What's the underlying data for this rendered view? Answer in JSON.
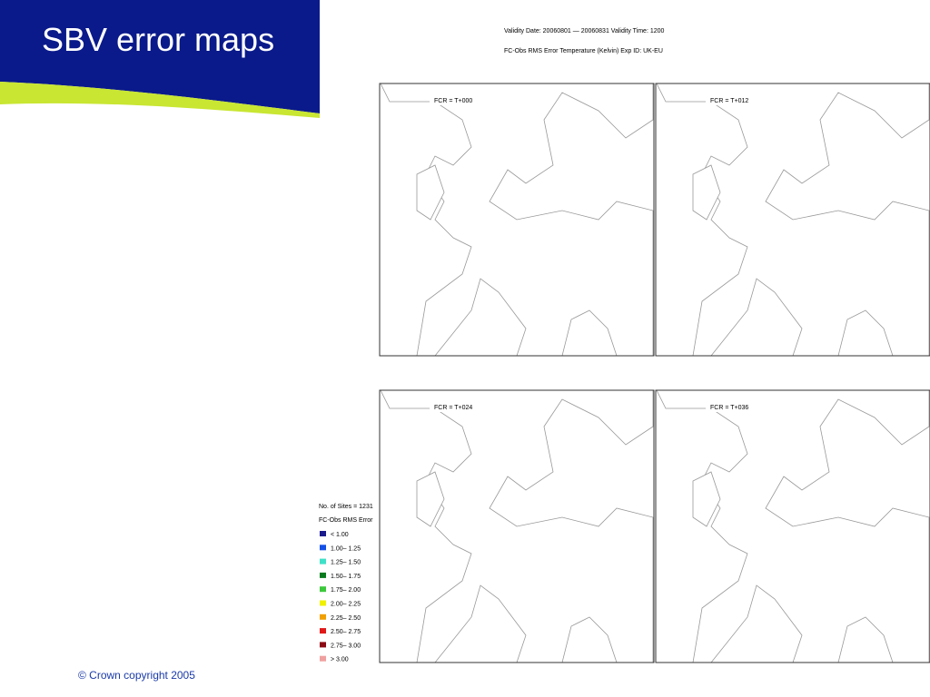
{
  "header": {
    "title": "SBV error maps"
  },
  "figure": {
    "info": [
      "Validity Date: 20060801 — 20060831 Validity Time:  1200",
      "FC-Obs RMS Error   Temperature (Kelvin)   Exp ID: UK-EU"
    ],
    "panels": [
      "FCR = T+000",
      "FCR = T+012",
      "FCR = T+024",
      "FCR = T+036"
    ],
    "legend": {
      "sites": "No. of Sites = 1231",
      "title": "FC-Obs RMS Error",
      "items": [
        {
          "label": "< 1.00",
          "color": "#1a1a8c"
        },
        {
          "label": "1.00– 1.25",
          "color": "#1450e6"
        },
        {
          "label": "1.25– 1.50",
          "color": "#40e0c8"
        },
        {
          "label": "1.50– 1.75",
          "color": "#0a7a1e"
        },
        {
          "label": "1.75– 2.00",
          "color": "#3cc83c"
        },
        {
          "label": "2.00– 2.25",
          "color": "#f0f000"
        },
        {
          "label": "2.25– 2.50",
          "color": "#f0a000"
        },
        {
          "label": "2.50– 2.75",
          "color": "#e01818"
        },
        {
          "label": "2.75– 3.00",
          "color": "#8c0a14"
        },
        {
          "label": "> 3.00",
          "color": "#f0a0a0"
        }
      ]
    }
  },
  "footer": {
    "copyright": "© Crown copyright 2005"
  }
}
